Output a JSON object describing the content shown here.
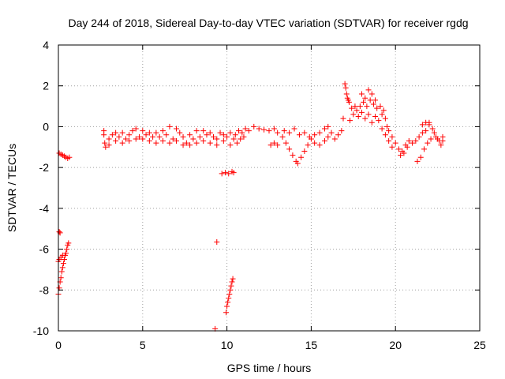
{
  "chart_data": {
    "type": "scatter",
    "title": "Day 244 of 2018, Sidereal Day-to-day VTEC variation (SDTVAR) for receiver rgdg",
    "xlabel": "GPS time / hours",
    "ylabel": "SDTVAR / TECUs",
    "xlim": [
      0,
      25
    ],
    "ylim": [
      -10,
      4
    ],
    "xticks": [
      0,
      5,
      10,
      15,
      20,
      25
    ],
    "yticks": [
      -10,
      -8,
      -6,
      -4,
      -2,
      0,
      2,
      4
    ],
    "xtick_labels": [
      "0",
      "5",
      "10",
      "15",
      "20",
      "25"
    ],
    "ytick_labels": [
      "-10",
      "-8",
      "-6",
      "-4",
      "-2",
      "0",
      "2",
      "4"
    ],
    "grid": true,
    "legend": "none",
    "series": [
      {
        "name": "rgdg",
        "color": "#ff0000",
        "marker": "+",
        "points": [
          [
            0.05,
            -5.15
          ],
          [
            0.1,
            -5.2
          ],
          [
            0.0,
            -8.2
          ],
          [
            0.05,
            -7.9
          ],
          [
            0.1,
            -7.6
          ],
          [
            0.15,
            -7.4
          ],
          [
            0.2,
            -7.1
          ],
          [
            0.25,
            -6.9
          ],
          [
            0.3,
            -6.7
          ],
          [
            0.35,
            -6.5
          ],
          [
            0.4,
            -6.3
          ],
          [
            0.45,
            -6.2
          ],
          [
            0.5,
            -6.0
          ],
          [
            0.55,
            -5.8
          ],
          [
            0.6,
            -5.7
          ],
          [
            0.0,
            -6.6
          ],
          [
            0.05,
            -6.5
          ],
          [
            0.15,
            -6.4
          ],
          [
            0.25,
            -6.3
          ],
          [
            0.05,
            -1.3
          ],
          [
            0.15,
            -1.35
          ],
          [
            0.25,
            -1.4
          ],
          [
            0.35,
            -1.45
          ],
          [
            0.45,
            -1.5
          ],
          [
            0.55,
            -1.55
          ],
          [
            0.65,
            -1.5
          ],
          [
            2.7,
            -0.4
          ],
          [
            2.75,
            -0.8
          ],
          [
            2.8,
            -1.0
          ],
          [
            3.0,
            -0.6
          ],
          [
            3.2,
            -0.4
          ],
          [
            3.4,
            -0.7
          ],
          [
            3.6,
            -0.5
          ],
          [
            3.8,
            -0.3
          ],
          [
            4.0,
            -0.6
          ],
          [
            4.2,
            -0.4
          ],
          [
            4.4,
            -0.2
          ],
          [
            4.6,
            -0.1
          ],
          [
            4.8,
            -0.5
          ],
          [
            5.0,
            -0.6
          ],
          [
            5.2,
            -0.4
          ],
          [
            5.4,
            -0.7
          ],
          [
            5.6,
            -0.5
          ],
          [
            5.8,
            -0.3
          ],
          [
            6.0,
            -0.5
          ],
          [
            6.2,
            -0.2
          ],
          [
            6.4,
            -0.4
          ],
          [
            6.6,
            0.0
          ],
          [
            6.8,
            -0.6
          ],
          [
            7.0,
            -0.7
          ],
          [
            7.2,
            -0.3
          ],
          [
            7.4,
            -0.5
          ],
          [
            7.6,
            -0.8
          ],
          [
            7.8,
            -0.4
          ],
          [
            8.0,
            -0.6
          ],
          [
            8.2,
            -0.2
          ],
          [
            8.4,
            -0.5
          ],
          [
            8.6,
            -0.7
          ],
          [
            8.8,
            -0.4
          ],
          [
            9.0,
            -0.8
          ],
          [
            9.2,
            -0.5
          ],
          [
            9.4,
            -0.6
          ],
          [
            9.6,
            -0.3
          ],
          [
            9.8,
            -0.4
          ],
          [
            10.0,
            -0.5
          ],
          [
            10.2,
            -0.3
          ],
          [
            10.4,
            -0.6
          ],
          [
            2.7,
            -0.2
          ],
          [
            3.0,
            -0.9
          ],
          [
            3.4,
            -0.3
          ],
          [
            3.8,
            -0.8
          ],
          [
            4.2,
            -0.7
          ],
          [
            4.6,
            -0.6
          ],
          [
            5.0,
            -0.2
          ],
          [
            5.4,
            -0.3
          ],
          [
            5.8,
            -0.8
          ],
          [
            6.2,
            -0.7
          ],
          [
            6.6,
            -0.8
          ],
          [
            7.0,
            -0.1
          ],
          [
            7.4,
            -0.9
          ],
          [
            7.8,
            -0.9
          ],
          [
            8.2,
            -0.8
          ],
          [
            8.6,
            -0.2
          ],
          [
            9.0,
            -0.3
          ],
          [
            9.4,
            -0.9
          ],
          [
            9.8,
            -0.7
          ],
          [
            10.2,
            -0.9
          ],
          [
            9.4,
            -5.65
          ],
          [
            9.3,
            -9.9
          ],
          [
            9.95,
            -9.1
          ],
          [
            10.0,
            -8.8
          ],
          [
            10.05,
            -8.6
          ],
          [
            10.1,
            -8.4
          ],
          [
            10.15,
            -8.2
          ],
          [
            10.2,
            -8.0
          ],
          [
            10.25,
            -7.8
          ],
          [
            10.3,
            -7.6
          ],
          [
            10.35,
            -7.45
          ],
          [
            9.7,
            -2.3
          ],
          [
            9.9,
            -2.25
          ],
          [
            10.1,
            -2.3
          ],
          [
            10.3,
            -2.2
          ],
          [
            10.4,
            -2.25
          ],
          [
            10.5,
            -0.4
          ],
          [
            10.7,
            -0.2
          ],
          [
            10.9,
            -0.3
          ],
          [
            11.1,
            -0.1
          ],
          [
            11.3,
            -0.2
          ],
          [
            11.6,
            0.0
          ],
          [
            11.9,
            -0.1
          ],
          [
            12.2,
            -0.15
          ],
          [
            12.5,
            -0.2
          ],
          [
            12.8,
            -0.1
          ],
          [
            13.0,
            -0.3
          ],
          [
            10.6,
            -0.8
          ],
          [
            10.8,
            -0.6
          ],
          [
            11.0,
            -0.5
          ],
          [
            12.6,
            -0.9
          ],
          [
            12.8,
            -0.8
          ],
          [
            13.0,
            -0.9
          ],
          [
            13.3,
            -0.5
          ],
          [
            13.5,
            -0.8
          ],
          [
            13.7,
            -1.1
          ],
          [
            13.9,
            -1.4
          ],
          [
            14.1,
            -1.7
          ],
          [
            14.2,
            -1.8
          ],
          [
            14.4,
            -1.5
          ],
          [
            14.6,
            -1.2
          ],
          [
            14.8,
            -0.9
          ],
          [
            15.0,
            -0.6
          ],
          [
            13.4,
            -0.2
          ],
          [
            13.7,
            -0.3
          ],
          [
            14.0,
            -0.1
          ],
          [
            14.3,
            -0.4
          ],
          [
            14.6,
            -0.3
          ],
          [
            14.9,
            -0.5
          ],
          [
            15.2,
            -0.4
          ],
          [
            15.5,
            -0.3
          ],
          [
            15.8,
            -0.1
          ],
          [
            16.0,
            0.0
          ],
          [
            15.2,
            -0.8
          ],
          [
            15.5,
            -0.9
          ],
          [
            15.8,
            -0.7
          ],
          [
            16.0,
            -0.5
          ],
          [
            16.2,
            -0.3
          ],
          [
            16.4,
            -0.6
          ],
          [
            16.6,
            -0.4
          ],
          [
            16.8,
            -0.2
          ],
          [
            16.9,
            0.4
          ],
          [
            17.0,
            2.1
          ],
          [
            17.05,
            1.9
          ],
          [
            17.1,
            1.6
          ],
          [
            17.15,
            1.4
          ],
          [
            17.2,
            1.3
          ],
          [
            17.25,
            1.2
          ],
          [
            17.3,
            0.3
          ],
          [
            17.5,
            0.6
          ],
          [
            17.7,
            0.8
          ],
          [
            17.9,
            1.0
          ],
          [
            18.1,
            1.2
          ],
          [
            18.3,
            1.0
          ],
          [
            18.5,
            1.3
          ],
          [
            18.7,
            1.1
          ],
          [
            18.9,
            0.9
          ],
          [
            19.1,
            1.0
          ],
          [
            19.3,
            0.8
          ],
          [
            17.4,
            0.9
          ],
          [
            17.6,
            1.0
          ],
          [
            17.8,
            0.5
          ],
          [
            18.0,
            0.7
          ],
          [
            18.2,
            0.4
          ],
          [
            18.4,
            0.6
          ],
          [
            18.6,
            0.2
          ],
          [
            18.8,
            0.5
          ],
          [
            19.0,
            0.3
          ],
          [
            19.2,
            0.6
          ],
          [
            18.0,
            1.6
          ],
          [
            18.2,
            1.4
          ],
          [
            18.4,
            1.8
          ],
          [
            18.6,
            1.6
          ],
          [
            18.8,
            1.3
          ],
          [
            19.4,
            0.4
          ],
          [
            19.5,
            0.0
          ],
          [
            19.6,
            -0.2
          ],
          [
            19.8,
            -0.5
          ],
          [
            20.0,
            -0.8
          ],
          [
            20.2,
            -1.1
          ],
          [
            20.4,
            -1.2
          ],
          [
            20.6,
            -0.9
          ],
          [
            20.8,
            -0.7
          ],
          [
            21.0,
            -0.8
          ],
          [
            19.2,
            -0.1
          ],
          [
            19.4,
            -0.4
          ],
          [
            19.6,
            -0.7
          ],
          [
            19.8,
            -1.0
          ],
          [
            20.3,
            -1.4
          ],
          [
            20.5,
            -1.3
          ],
          [
            20.7,
            -1.0
          ],
          [
            21.2,
            -0.7
          ],
          [
            21.4,
            -0.5
          ],
          [
            21.6,
            -0.3
          ],
          [
            21.8,
            -0.2
          ],
          [
            22.0,
            0.1
          ],
          [
            22.2,
            -0.1
          ],
          [
            22.4,
            -0.5
          ],
          [
            22.6,
            -0.7
          ],
          [
            22.8,
            -0.5
          ],
          [
            21.3,
            -1.7
          ],
          [
            21.5,
            -1.5
          ],
          [
            21.7,
            -1.1
          ],
          [
            21.9,
            -0.8
          ],
          [
            22.1,
            -0.6
          ],
          [
            21.6,
            0.1
          ],
          [
            21.8,
            0.2
          ],
          [
            22.0,
            0.2
          ],
          [
            22.3,
            -0.3
          ],
          [
            22.5,
            -0.6
          ],
          [
            22.7,
            -0.9
          ],
          [
            22.8,
            -0.7
          ]
        ]
      }
    ]
  }
}
